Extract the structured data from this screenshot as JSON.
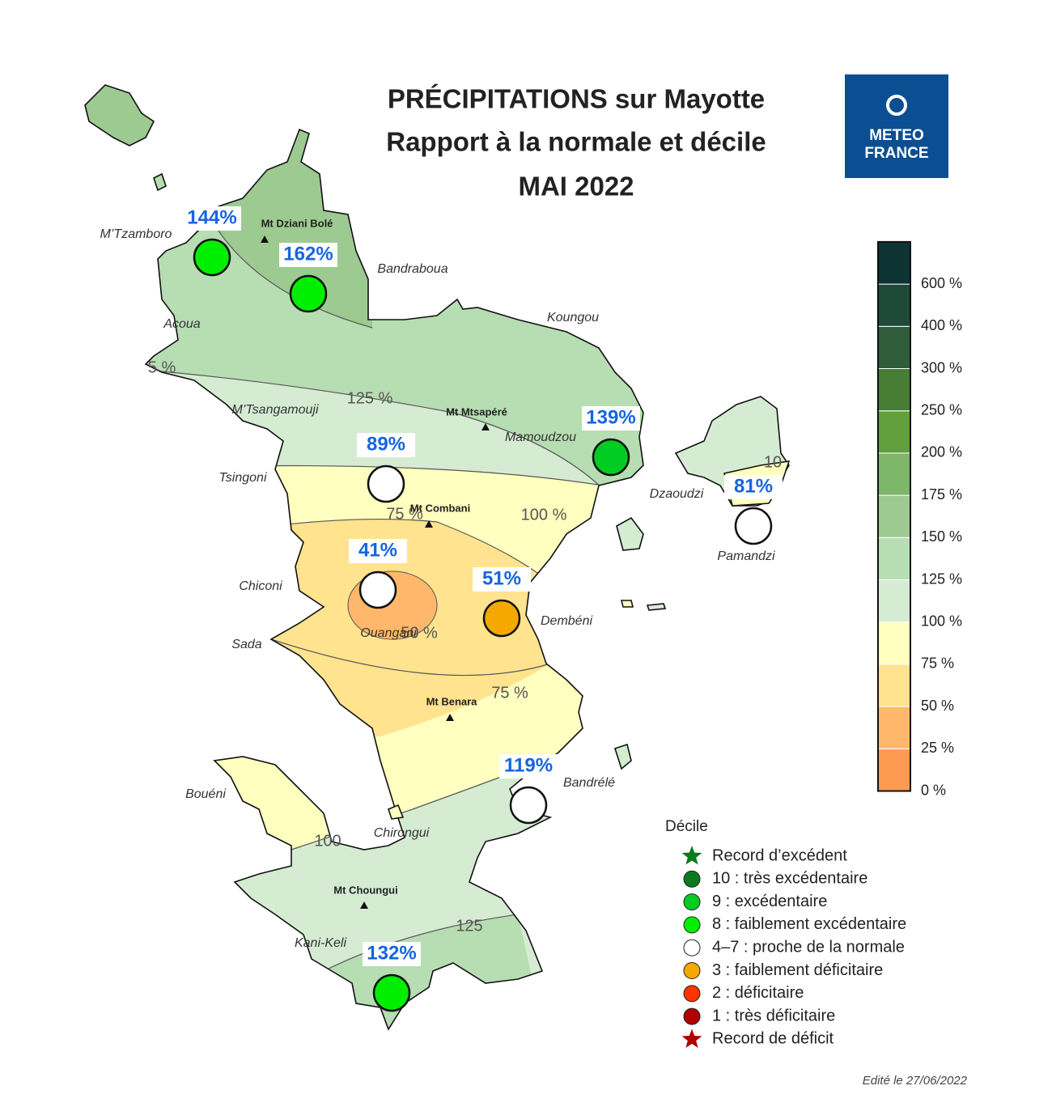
{
  "title": [
    "PRÉCIPITATIONS sur Mayotte",
    "Rapport à la normale et décile",
    "MAI 2022"
  ],
  "logo": [
    "METEO",
    "FRANCE"
  ],
  "stations": [
    {
      "label": "144%",
      "color": "#00ee00"
    },
    {
      "label": "162%",
      "color": "#00ee00"
    },
    {
      "label": "139%",
      "color": "#00cc22"
    },
    {
      "label": "89%",
      "color": "#ffffff"
    },
    {
      "label": "81%",
      "color": "#ffffff"
    },
    {
      "label": "41%",
      "color": "#ffffff"
    },
    {
      "label": "51%",
      "color": "#f5a800"
    },
    {
      "label": "119%",
      "color": "#ffffff"
    },
    {
      "label": "132%",
      "color": "#00ee00"
    }
  ],
  "places": [
    "M’Tzamboro",
    "Bandraboua",
    "Acoua",
    "Koungou",
    "M’Tsangamouji",
    "Mamoudzou",
    "Tsingoni",
    "Dzaoudzi",
    "Pamandzi",
    "Chiconi",
    "Dembéni",
    "Sada",
    "Ouangani",
    "Bouéni",
    "Bandrélé",
    "Chirongui",
    "Kani-Keli"
  ],
  "mountains": [
    "Mt Dziani Bolé",
    "Mt Mtsapéré",
    "Mt Combani",
    "Mt Benara",
    "Mt Choungui"
  ],
  "contour_labels": [
    "5 %",
    "125 %",
    "75 %",
    "100 %",
    "50 %",
    "75 %",
    "100",
    "125",
    "10"
  ],
  "colorbar": {
    "labels": [
      "0 %",
      "25 %",
      "50 %",
      "75 %",
      "100 %",
      "125 %",
      "150 %",
      "175 %",
      "200 %",
      "250 %",
      "300 %",
      "400 %",
      "600 %"
    ],
    "colors": [
      "#ff9a52",
      "#ffb86b",
      "#ffe38e",
      "#ffffbf",
      "#d5ecd3",
      "#b7ddb2",
      "#9dca90",
      "#7eb66a",
      "#619f3d",
      "#477d35",
      "#2f5d3c",
      "#1e4a3a",
      "#0d3333"
    ]
  },
  "legend": {
    "title": "Décile",
    "entries": [
      {
        "label": "Record d’excédent",
        "color": "#0a7a1a",
        "symbol": "star"
      },
      {
        "label": "10 : très excédentaire",
        "color": "#0a7a1a",
        "symbol": "circle"
      },
      {
        "label": "9 : excédentaire",
        "color": "#00cc22",
        "symbol": "circle"
      },
      {
        "label": "8 : faiblement excédentaire",
        "color": "#00ee00",
        "symbol": "circle"
      },
      {
        "label": "4–7 : proche de la normale",
        "color": "#ffffff",
        "symbol": "circle"
      },
      {
        "label": "3 : faiblement déficitaire",
        "color": "#f5a800",
        "symbol": "circle"
      },
      {
        "label": "2 : déficitaire",
        "color": "#ff3300",
        "symbol": "circle"
      },
      {
        "label": "1 : très déficitaire",
        "color": "#b00000",
        "symbol": "circle"
      },
      {
        "label": "Record de déficit",
        "color": "#b00000",
        "symbol": "star"
      }
    ]
  },
  "footer": "Edité le 27/06/2022"
}
